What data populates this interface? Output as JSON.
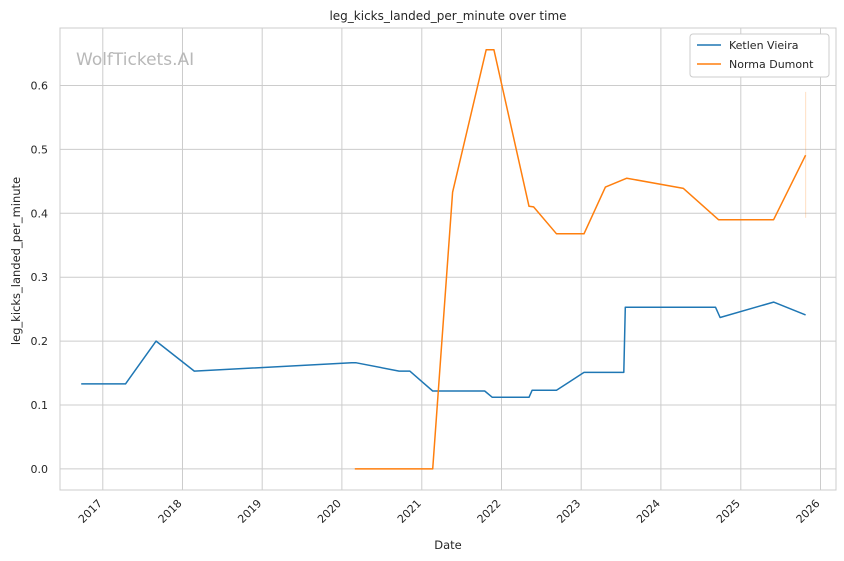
{
  "chart_data": {
    "type": "line",
    "title": "leg_kicks_landed_per_minute over time",
    "xlabel": "Date",
    "ylabel": "leg_kicks_landed_per_minute",
    "watermark": "WolfTickets.AI",
    "x_ticks": [
      "2017",
      "2018",
      "2019",
      "2020",
      "2021",
      "2022",
      "2023",
      "2024",
      "2025",
      "2026"
    ],
    "y_ticks": [
      "0.0",
      "0.1",
      "0.2",
      "0.3",
      "0.4",
      "0.5",
      "0.6"
    ],
    "xlim": [
      "2016-06-19",
      "2026-03-13"
    ],
    "ylim": [
      -0.033,
      0.69
    ],
    "grid": true,
    "legend_position": "top-right",
    "series": [
      {
        "name": "Ketlen Vieira",
        "color": "#1f77b4",
        "points": [
          [
            "2016-09-24",
            0.133
          ],
          [
            "2017-04-15",
            0.133
          ],
          [
            "2017-09-02",
            0.2
          ],
          [
            "2018-02-24",
            0.153
          ],
          [
            "2020-02-15",
            0.166
          ],
          [
            "2020-03-07",
            0.166
          ],
          [
            "2020-09-19",
            0.153
          ],
          [
            "2020-11-07",
            0.153
          ],
          [
            "2021-02-20",
            0.122
          ],
          [
            "2021-10-16",
            0.122
          ],
          [
            "2021-11-20",
            0.112
          ],
          [
            "2022-05-07",
            0.112
          ],
          [
            "2022-05-21",
            0.123
          ],
          [
            "2022-09-10",
            0.123
          ],
          [
            "2023-01-14",
            0.151
          ],
          [
            "2023-07-15",
            0.151
          ],
          [
            "2023-07-22",
            0.253
          ],
          [
            "2024-09-07",
            0.253
          ],
          [
            "2024-09-28",
            0.237
          ],
          [
            "2025-05-31",
            0.261
          ],
          [
            "2025-10-25",
            0.241
          ]
        ]
      },
      {
        "name": "Norma Dumont",
        "color": "#ff7f0e",
        "points": [
          [
            "2020-02-29",
            0.0
          ],
          [
            "2021-02-20",
            0.0
          ],
          [
            "2021-05-22",
            0.433
          ],
          [
            "2021-10-23",
            0.656
          ],
          [
            "2021-11-27",
            0.656
          ],
          [
            "2022-05-07",
            0.411
          ],
          [
            "2022-05-28",
            0.41
          ],
          [
            "2022-09-10",
            0.368
          ],
          [
            "2023-01-14",
            0.368
          ],
          [
            "2023-04-22",
            0.441
          ],
          [
            "2023-07-29",
            0.455
          ],
          [
            "2024-04-13",
            0.439
          ],
          [
            "2024-09-21",
            0.39
          ],
          [
            "2025-05-31",
            0.39
          ],
          [
            "2025-10-25",
            0.491
          ]
        ],
        "error_band": {
          "date": "2025-10-25",
          "low": 0.393,
          "high": 0.59
        }
      }
    ]
  }
}
